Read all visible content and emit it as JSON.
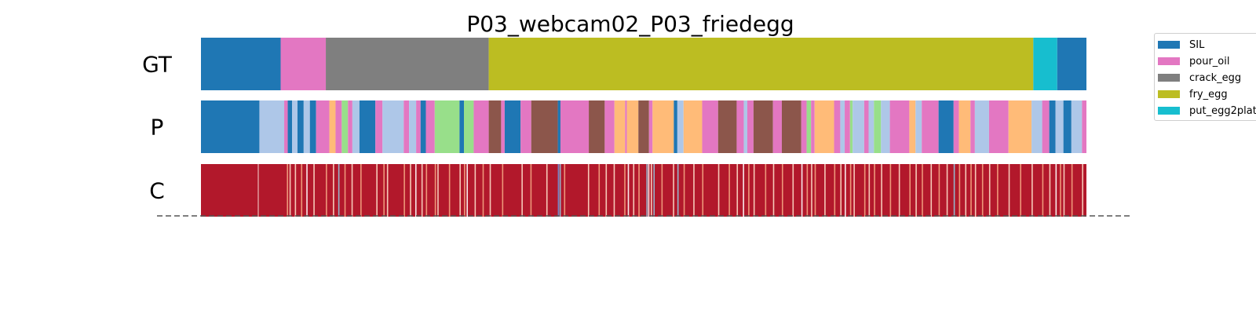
{
  "chart_data": {
    "type": "segmentation_timeline",
    "title": "P03_webcam02_P03_friedegg",
    "time_extent": [
      0,
      1000
    ],
    "rows": [
      {
        "label": "GT",
        "segments": [
          {
            "start": 0,
            "end": 90,
            "class": "SIL"
          },
          {
            "start": 90,
            "end": 141,
            "class": "pour_oil"
          },
          {
            "start": 141,
            "end": 325,
            "class": "crack_egg"
          },
          {
            "start": 325,
            "end": 940,
            "class": "fry_egg"
          },
          {
            "start": 940,
            "end": 967,
            "class": "put_egg2plate"
          },
          {
            "start": 967,
            "end": 1000,
            "class": "SIL"
          }
        ]
      },
      {
        "label": "P",
        "segments": [
          {
            "start": 0,
            "end": 66,
            "class": "SIL"
          },
          {
            "start": 66,
            "end": 94,
            "class": "c_lightblue"
          },
          {
            "start": 94,
            "end": 98,
            "class": "pour_oil"
          },
          {
            "start": 98,
            "end": 103,
            "class": "SIL"
          },
          {
            "start": 103,
            "end": 109,
            "class": "c_lightblue"
          },
          {
            "start": 109,
            "end": 116,
            "class": "SIL"
          },
          {
            "start": 116,
            "end": 123,
            "class": "c_lightblue"
          },
          {
            "start": 123,
            "end": 130,
            "class": "SIL"
          },
          {
            "start": 130,
            "end": 145,
            "class": "pour_oil"
          },
          {
            "start": 145,
            "end": 152,
            "class": "c_orange"
          },
          {
            "start": 152,
            "end": 159,
            "class": "pour_oil"
          },
          {
            "start": 159,
            "end": 166,
            "class": "c_lightgreen"
          },
          {
            "start": 166,
            "end": 171,
            "class": "pour_oil"
          },
          {
            "start": 171,
            "end": 179,
            "class": "c_lightblue"
          },
          {
            "start": 179,
            "end": 197,
            "class": "SIL"
          },
          {
            "start": 197,
            "end": 205,
            "class": "pour_oil"
          },
          {
            "start": 205,
            "end": 229,
            "class": "c_lightblue"
          },
          {
            "start": 229,
            "end": 235,
            "class": "pour_oil"
          },
          {
            "start": 235,
            "end": 243,
            "class": "c_lightblue"
          },
          {
            "start": 243,
            "end": 248,
            "class": "pour_oil"
          },
          {
            "start": 248,
            "end": 254,
            "class": "SIL"
          },
          {
            "start": 254,
            "end": 264,
            "class": "pour_oil"
          },
          {
            "start": 264,
            "end": 292,
            "class": "c_lightgreen"
          },
          {
            "start": 292,
            "end": 297,
            "class": "SIL"
          },
          {
            "start": 297,
            "end": 308,
            "class": "c_lightgreen"
          },
          {
            "start": 308,
            "end": 325,
            "class": "pour_oil"
          },
          {
            "start": 325,
            "end": 339,
            "class": "c_brown"
          },
          {
            "start": 339,
            "end": 343,
            "class": "pour_oil"
          },
          {
            "start": 343,
            "end": 361,
            "class": "SIL"
          },
          {
            "start": 361,
            "end": 373,
            "class": "pour_oil"
          },
          {
            "start": 373,
            "end": 403,
            "class": "c_brown"
          },
          {
            "start": 403,
            "end": 406,
            "class": "SIL"
          },
          {
            "start": 406,
            "end": 438,
            "class": "pour_oil"
          },
          {
            "start": 438,
            "end": 456,
            "class": "c_brown"
          },
          {
            "start": 456,
            "end": 467,
            "class": "pour_oil"
          },
          {
            "start": 467,
            "end": 479,
            "class": "c_orange"
          },
          {
            "start": 479,
            "end": 481,
            "class": "pour_oil"
          },
          {
            "start": 481,
            "end": 494,
            "class": "c_orange"
          },
          {
            "start": 494,
            "end": 506,
            "class": "c_brown"
          },
          {
            "start": 506,
            "end": 510,
            "class": "pour_oil"
          },
          {
            "start": 510,
            "end": 534,
            "class": "c_orange"
          },
          {
            "start": 534,
            "end": 538,
            "class": "SIL"
          },
          {
            "start": 538,
            "end": 545,
            "class": "c_lightblue"
          },
          {
            "start": 545,
            "end": 566,
            "class": "c_orange"
          },
          {
            "start": 566,
            "end": 584,
            "class": "pour_oil"
          },
          {
            "start": 584,
            "end": 605,
            "class": "c_brown"
          },
          {
            "start": 605,
            "end": 613,
            "class": "pour_oil"
          },
          {
            "start": 613,
            "end": 617,
            "class": "c_lightblue"
          },
          {
            "start": 617,
            "end": 624,
            "class": "pour_oil"
          },
          {
            "start": 624,
            "end": 646,
            "class": "c_brown"
          },
          {
            "start": 646,
            "end": 656,
            "class": "pour_oil"
          },
          {
            "start": 656,
            "end": 678,
            "class": "c_brown"
          },
          {
            "start": 678,
            "end": 684,
            "class": "pour_oil"
          },
          {
            "start": 684,
            "end": 689,
            "class": "c_lightgreen"
          },
          {
            "start": 689,
            "end": 693,
            "class": "pour_oil"
          },
          {
            "start": 693,
            "end": 715,
            "class": "c_orange"
          },
          {
            "start": 715,
            "end": 722,
            "class": "pour_oil"
          },
          {
            "start": 722,
            "end": 727,
            "class": "c_lightblue"
          },
          {
            "start": 727,
            "end": 733,
            "class": "pour_oil"
          },
          {
            "start": 733,
            "end": 736,
            "class": "c_lightgreen"
          },
          {
            "start": 736,
            "end": 749,
            "class": "c_lightblue"
          },
          {
            "start": 749,
            "end": 754,
            "class": "pour_oil"
          },
          {
            "start": 754,
            "end": 760,
            "class": "c_lightblue"
          },
          {
            "start": 760,
            "end": 768,
            "class": "c_lightgreen"
          },
          {
            "start": 768,
            "end": 778,
            "class": "c_lightblue"
          },
          {
            "start": 778,
            "end": 800,
            "class": "pour_oil"
          },
          {
            "start": 800,
            "end": 807,
            "class": "c_orange"
          },
          {
            "start": 807,
            "end": 814,
            "class": "c_lightblue"
          },
          {
            "start": 814,
            "end": 833,
            "class": "pour_oil"
          },
          {
            "start": 833,
            "end": 850,
            "class": "SIL"
          },
          {
            "start": 850,
            "end": 856,
            "class": "pour_oil"
          },
          {
            "start": 856,
            "end": 869,
            "class": "c_orange"
          },
          {
            "start": 869,
            "end": 874,
            "class": "pour_oil"
          },
          {
            "start": 874,
            "end": 890,
            "class": "c_lightblue"
          },
          {
            "start": 890,
            "end": 912,
            "class": "pour_oil"
          },
          {
            "start": 912,
            "end": 938,
            "class": "c_orange"
          },
          {
            "start": 938,
            "end": 950,
            "class": "c_lightblue"
          },
          {
            "start": 950,
            "end": 958,
            "class": "pour_oil"
          },
          {
            "start": 958,
            "end": 965,
            "class": "SIL"
          },
          {
            "start": 965,
            "end": 974,
            "class": "c_lightblue"
          },
          {
            "start": 974,
            "end": 983,
            "class": "SIL"
          },
          {
            "start": 983,
            "end": 995,
            "class": "c_lightblue"
          },
          {
            "start": 995,
            "end": 1000,
            "class": "pour_oil"
          }
        ]
      },
      {
        "label": "C",
        "type": "confidence",
        "base_color": "#b2182b",
        "stripes": [
          {
            "t": 64,
            "color": "#e0a0a0"
          },
          {
            "t": 97,
            "color": "#f4a582"
          },
          {
            "t": 100,
            "color": "#fddbc7"
          },
          {
            "t": 106,
            "color": "#fddbc7"
          },
          {
            "t": 113,
            "color": "#f4a582"
          },
          {
            "t": 119,
            "color": "#ffffff"
          },
          {
            "t": 127,
            "color": "#fddbc7"
          },
          {
            "t": 141,
            "color": "#f4a582"
          },
          {
            "t": 149,
            "color": "#fddbc7"
          },
          {
            "t": 155,
            "color": "#92c5de"
          },
          {
            "t": 162,
            "color": "#f4a582"
          },
          {
            "t": 170,
            "color": "#fddbc7"
          },
          {
            "t": 180,
            "color": "#f4a582"
          },
          {
            "t": 198,
            "color": "#fddbc7"
          },
          {
            "t": 206,
            "color": "#f4a582"
          },
          {
            "t": 210,
            "color": "#fddbc7"
          },
          {
            "t": 229,
            "color": "#f4a582"
          },
          {
            "t": 236,
            "color": "#fddbc7"
          },
          {
            "t": 242,
            "color": "#ffffff"
          },
          {
            "t": 249,
            "color": "#fddbc7"
          },
          {
            "t": 254,
            "color": "#f4a582"
          },
          {
            "t": 264,
            "color": "#f4a582"
          },
          {
            "t": 267,
            "color": "#fddbc7"
          },
          {
            "t": 280,
            "color": "#f4a582"
          },
          {
            "t": 292,
            "color": "#fddbc7"
          },
          {
            "t": 297,
            "color": "#f4a582"
          },
          {
            "t": 300,
            "color": "#ffffff"
          },
          {
            "t": 309,
            "color": "#fddbc7"
          },
          {
            "t": 318,
            "color": "#f4a582"
          },
          {
            "t": 326,
            "color": "#fddbc7"
          },
          {
            "t": 340,
            "color": "#f4a582"
          },
          {
            "t": 362,
            "color": "#fddbc7"
          },
          {
            "t": 372,
            "color": "#f4a582"
          },
          {
            "t": 390,
            "color": "#fddbc7"
          },
          {
            "t": 403,
            "color": "#6f93d8"
          },
          {
            "t": 405,
            "color": "#92c5de"
          },
          {
            "t": 410,
            "color": "#f4a582"
          },
          {
            "t": 437,
            "color": "#fddbc7"
          },
          {
            "t": 449,
            "color": "#f4a582"
          },
          {
            "t": 457,
            "color": "#fddbc7"
          },
          {
            "t": 466,
            "color": "#fddbc7"
          },
          {
            "t": 478,
            "color": "#f4a582"
          },
          {
            "t": 482,
            "color": "#ffffff"
          },
          {
            "t": 488,
            "color": "#fddbc7"
          },
          {
            "t": 494,
            "color": "#f4a582"
          },
          {
            "t": 503,
            "color": "#92c5de"
          },
          {
            "t": 505,
            "color": "#ffffff"
          },
          {
            "t": 508,
            "color": "#fddbc7"
          },
          {
            "t": 511,
            "color": "#92c5de"
          },
          {
            "t": 520,
            "color": "#f4a582"
          },
          {
            "t": 533,
            "color": "#fddbc7"
          },
          {
            "t": 538,
            "color": "#92c5de"
          },
          {
            "t": 545,
            "color": "#f4a582"
          },
          {
            "t": 556,
            "color": "#fddbc7"
          },
          {
            "t": 566,
            "color": "#f4a582"
          },
          {
            "t": 584,
            "color": "#fddbc7"
          },
          {
            "t": 596,
            "color": "#f4a582"
          },
          {
            "t": 605,
            "color": "#fddbc7"
          },
          {
            "t": 612,
            "color": "#ffffff"
          },
          {
            "t": 618,
            "color": "#f4a582"
          },
          {
            "t": 624,
            "color": "#fddbc7"
          },
          {
            "t": 637,
            "color": "#f4a582"
          },
          {
            "t": 646,
            "color": "#fddbc7"
          },
          {
            "t": 656,
            "color": "#f4a582"
          },
          {
            "t": 668,
            "color": "#fddbc7"
          },
          {
            "t": 678,
            "color": "#ffffff"
          },
          {
            "t": 684,
            "color": "#f4a582"
          },
          {
            "t": 689,
            "color": "#fddbc7"
          },
          {
            "t": 693,
            "color": "#f4a582"
          },
          {
            "t": 704,
            "color": "#fddbc7"
          },
          {
            "t": 715,
            "color": "#f4a582"
          },
          {
            "t": 722,
            "color": "#fddbc7"
          },
          {
            "t": 727,
            "color": "#ffffff"
          },
          {
            "t": 733,
            "color": "#f4a582"
          },
          {
            "t": 737,
            "color": "#fddbc7"
          },
          {
            "t": 749,
            "color": "#f4a582"
          },
          {
            "t": 754,
            "color": "#fddbc7"
          },
          {
            "t": 760,
            "color": "#f4a582"
          },
          {
            "t": 768,
            "color": "#fddbc7"
          },
          {
            "t": 778,
            "color": "#f4a582"
          },
          {
            "t": 788,
            "color": "#fddbc7"
          },
          {
            "t": 800,
            "color": "#f4a582"
          },
          {
            "t": 807,
            "color": "#fddbc7"
          },
          {
            "t": 814,
            "color": "#f4a582"
          },
          {
            "t": 824,
            "color": "#fddbc7"
          },
          {
            "t": 833,
            "color": "#f4a582"
          },
          {
            "t": 842,
            "color": "#fddbc7"
          },
          {
            "t": 850,
            "color": "#92c5de"
          },
          {
            "t": 856,
            "color": "#f4a582"
          },
          {
            "t": 863,
            "color": "#fddbc7"
          },
          {
            "t": 869,
            "color": "#f4a582"
          },
          {
            "t": 874,
            "color": "#fddbc7"
          },
          {
            "t": 882,
            "color": "#f4a582"
          },
          {
            "t": 890,
            "color": "#fddbc7"
          },
          {
            "t": 899,
            "color": "#f4a582"
          },
          {
            "t": 912,
            "color": "#fddbc7"
          },
          {
            "t": 925,
            "color": "#f4a582"
          },
          {
            "t": 938,
            "color": "#fddbc7"
          },
          {
            "t": 950,
            "color": "#f4a582"
          },
          {
            "t": 958,
            "color": "#fddbc7"
          },
          {
            "t": 965,
            "color": "#ffffff"
          },
          {
            "t": 970,
            "color": "#f4a582"
          },
          {
            "t": 974,
            "color": "#fddbc7"
          },
          {
            "t": 983,
            "color": "#f4a582"
          },
          {
            "t": 995,
            "color": "#fddbc7"
          }
        ]
      }
    ],
    "legend": {
      "placement": "right",
      "items": [
        {
          "label": "SIL",
          "class": "SIL"
        },
        {
          "label": "pour_oil",
          "class": "pour_oil"
        },
        {
          "label": "crack_egg",
          "class": "crack_egg"
        },
        {
          "label": "fry_egg",
          "class": "fry_egg"
        },
        {
          "label": "put_egg2plate",
          "class": "put_egg2plate"
        }
      ]
    },
    "class_colors": {
      "SIL": "#1f77b4",
      "pour_oil": "#e377c2",
      "crack_egg": "#7f7f7f",
      "fry_egg": "#bcbd22",
      "put_egg2plate": "#17becf",
      "c_lightblue": "#aec7e8",
      "c_orange": "#ffbb78",
      "c_lightgreen": "#98df8a",
      "c_brown": "#8c564b"
    }
  }
}
